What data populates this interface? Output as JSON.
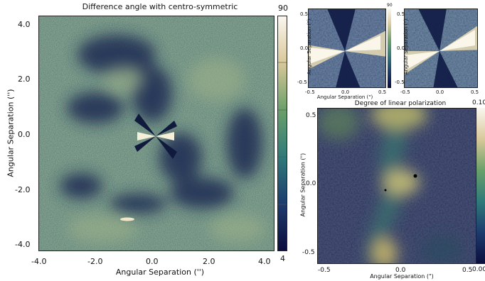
{
  "main_panel": {
    "title": "Difference angle with centro-symmetric",
    "xlabel": "Angular Separation ('')",
    "ylabel": "Angular Separation ('')",
    "xticks": [
      "-4.0",
      "-2.0",
      "0.0",
      "2.0",
      "4.0"
    ],
    "yticks": [
      "4.0",
      "2.0",
      "0.0",
      "-2.0",
      "-4.0"
    ],
    "colorbar_max": "90",
    "colorbar_min": "4"
  },
  "top_left_panel": {
    "ylabel": "Angular Separation (\")",
    "xlabel": "Angular Separation (\")",
    "xticks": [
      "-0.5",
      "0.0",
      "0.5"
    ],
    "yticks": [
      "0.5",
      "0.0",
      "-0.5"
    ],
    "colorbar_max": "90"
  },
  "top_right_panel": {
    "ylabel": "Angular Separation (\")",
    "xticks": [
      "-0.5",
      "0.0",
      "0.5"
    ],
    "yticks": [
      "0.5",
      "0.0",
      "-0.5"
    ]
  },
  "bottom_panel": {
    "title": "Degree of linear polarization",
    "xlabel": "Angular Separation (\")",
    "ylabel": "Angular Separation (\")",
    "xticks": [
      "-0.5",
      "0.0",
      "0.5"
    ],
    "yticks": [
      "0.5",
      "0.0",
      "-0.5"
    ],
    "colorbar_max": "0.10",
    "colorbar_min": "0.00"
  },
  "colors": {
    "background_teal": "#3f6e6a",
    "dark_navy": "#1d2650",
    "cream": "#e6d9ae",
    "white": "#fbf7ec"
  }
}
